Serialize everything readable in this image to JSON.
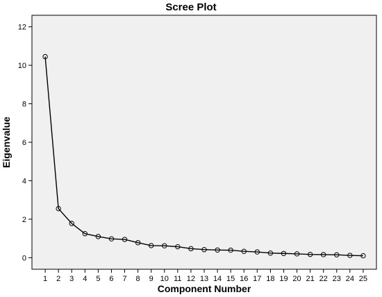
{
  "chart_data": {
    "type": "line",
    "title": "Scree Plot",
    "xlabel": "Component Number",
    "ylabel": "Eigenvalue",
    "x": [
      1,
      2,
      3,
      4,
      5,
      6,
      7,
      8,
      9,
      10,
      11,
      12,
      13,
      14,
      15,
      16,
      17,
      18,
      19,
      20,
      21,
      22,
      23,
      24,
      25
    ],
    "series": [
      {
        "values": [
          10.45,
          2.55,
          1.78,
          1.25,
          1.1,
          0.98,
          0.95,
          0.78,
          0.63,
          0.62,
          0.57,
          0.47,
          0.42,
          0.4,
          0.39,
          0.33,
          0.3,
          0.24,
          0.22,
          0.2,
          0.17,
          0.16,
          0.15,
          0.12,
          0.1
        ]
      }
    ],
    "xlim": [
      0,
      26
    ],
    "ylim": [
      -0.6,
      12.6
    ],
    "yticks": [
      0,
      2,
      4,
      6,
      8,
      10,
      12
    ],
    "grid": false,
    "legend": "none",
    "colors": {
      "plot_background": "#f0f0f0",
      "page_background": "#ffffff",
      "line": "#000000",
      "marker_stroke": "#000000"
    }
  }
}
